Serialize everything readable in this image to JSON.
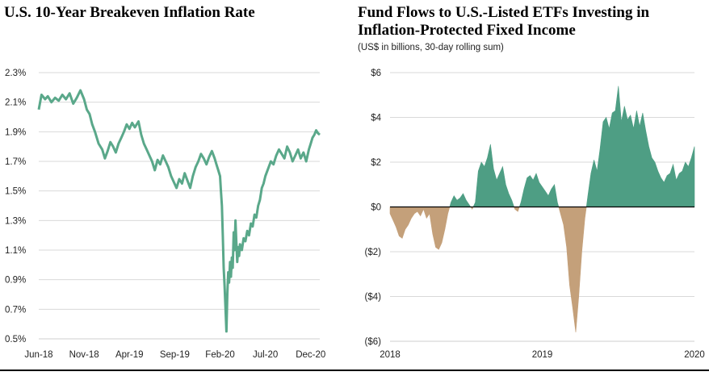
{
  "charts": {
    "left": {
      "title": "U.S. 10-Year Breakeven Inflation Rate"
    },
    "right": {
      "title_line1": "Fund Flows to U.S.-Listed ETFs Investing in",
      "title_line2": "Inflation-Protected Fixed Income",
      "subtitle": "(US$ in billions, 30-day rolling sum)"
    }
  },
  "colors": {
    "line": "#5aa88a",
    "positive": "#4e9e84",
    "negative": "#c4a07a",
    "grid": "#d9d9d9",
    "baseline": "#000000"
  },
  "chart_data": [
    {
      "type": "line",
      "title": "U.S. 10-Year Breakeven Inflation Rate",
      "xlabel": "",
      "ylabel": "",
      "grid": true,
      "ylim": [
        0.5,
        2.3
      ],
      "yticks": [
        "0.5%",
        "0.7%",
        "0.9%",
        "1.1%",
        "1.3%",
        "1.5%",
        "1.7%",
        "1.9%",
        "2.1%",
        "2.3%"
      ],
      "ytick_values": [
        0.5,
        0.7,
        0.9,
        1.1,
        1.3,
        1.5,
        1.7,
        1.9,
        2.1,
        2.3
      ],
      "xlim": [
        0,
        31
      ],
      "xticks": [
        "Jun-18",
        "Nov-18",
        "Apr-19",
        "Sep-19",
        "Feb-20",
        "Jul-20",
        "Dec-20"
      ],
      "xtick_values": [
        0,
        5,
        10,
        15,
        20,
        25,
        30
      ],
      "series": [
        {
          "name": "10-Year Breakeven",
          "x": [
            0,
            0.3,
            0.7,
            1.0,
            1.4,
            1.8,
            2.2,
            2.6,
            3.0,
            3.4,
            3.8,
            4.2,
            4.6,
            5.0,
            5.3,
            5.6,
            5.9,
            6.2,
            6.6,
            7.0,
            7.3,
            7.6,
            7.9,
            8.2,
            8.5,
            8.8,
            9.1,
            9.4,
            9.7,
            10.0,
            10.3,
            10.6,
            11.0,
            11.3,
            11.6,
            11.9,
            12.2,
            12.5,
            12.8,
            13.1,
            13.4,
            13.7,
            14.0,
            14.3,
            14.6,
            14.9,
            15.2,
            15.5,
            15.8,
            16.1,
            16.4,
            16.7,
            17.0,
            17.3,
            17.6,
            17.9,
            18.2,
            18.5,
            18.8,
            19.1,
            19.4,
            19.6,
            19.8,
            20.0,
            20.1,
            20.2,
            20.3,
            20.4,
            20.5,
            20.6,
            20.7,
            20.8,
            20.9,
            21.0,
            21.1,
            21.2,
            21.3,
            21.4,
            21.5,
            21.6,
            21.7,
            21.8,
            21.9,
            22.0,
            22.1,
            22.2,
            22.4,
            22.6,
            22.8,
            23.0,
            23.2,
            23.4,
            23.6,
            23.8,
            24.0,
            24.2,
            24.4,
            24.6,
            24.8,
            25.0,
            25.3,
            25.6,
            25.9,
            26.2,
            26.5,
            26.8,
            27.1,
            27.4,
            27.7,
            28.0,
            28.3,
            28.6,
            28.9,
            29.2,
            29.5,
            29.8,
            30.0,
            30.2,
            30.4,
            30.6,
            30.8,
            31.0
          ],
          "values": [
            2.05,
            2.15,
            2.12,
            2.14,
            2.1,
            2.13,
            2.11,
            2.15,
            2.12,
            2.16,
            2.09,
            2.13,
            2.18,
            2.12,
            2.05,
            2.02,
            1.95,
            1.9,
            1.82,
            1.78,
            1.72,
            1.77,
            1.83,
            1.8,
            1.76,
            1.82,
            1.86,
            1.9,
            1.95,
            1.92,
            1.96,
            1.93,
            1.97,
            1.88,
            1.82,
            1.78,
            1.74,
            1.7,
            1.64,
            1.71,
            1.68,
            1.74,
            1.7,
            1.66,
            1.6,
            1.56,
            1.52,
            1.58,
            1.55,
            1.62,
            1.57,
            1.52,
            1.6,
            1.66,
            1.7,
            1.75,
            1.72,
            1.68,
            1.73,
            1.77,
            1.72,
            1.68,
            1.64,
            1.6,
            1.5,
            1.4,
            1.2,
            0.98,
            0.86,
            0.7,
            0.55,
            0.8,
            0.95,
            0.88,
            1.02,
            0.92,
            1.05,
            0.98,
            1.22,
            1.1,
            1.3,
            1.15,
            1.02,
            1.12,
            1.06,
            1.14,
            1.1,
            1.18,
            1.16,
            1.23,
            1.2,
            1.28,
            1.26,
            1.34,
            1.32,
            1.4,
            1.44,
            1.52,
            1.55,
            1.6,
            1.65,
            1.7,
            1.68,
            1.74,
            1.78,
            1.75,
            1.72,
            1.8,
            1.76,
            1.7,
            1.74,
            1.78,
            1.72,
            1.76,
            1.7,
            1.78,
            1.82,
            1.86,
            1.88,
            1.91,
            1.89,
            1.88
          ]
        }
      ]
    },
    {
      "type": "area",
      "title": "Fund Flows to U.S.-Listed ETFs Investing in Inflation-Protected Fixed Income",
      "subtitle": "(US$ in billions, 30-day rolling sum)",
      "xlabel": "",
      "ylabel": "",
      "grid": true,
      "ylim": [
        -6,
        6
      ],
      "yticks": [
        "$6",
        "$4",
        "$2",
        "$0",
        "($2)",
        "($4)",
        "($6)"
      ],
      "ytick_values": [
        6,
        4,
        2,
        0,
        -2,
        -4,
        -6
      ],
      "xlim": [
        2018,
        2020
      ],
      "xticks": [
        "2018",
        "2019",
        "2020"
      ],
      "xtick_values": [
        2018,
        2019,
        2020
      ],
      "series": [
        {
          "name": "30-day rolling sum",
          "x": [
            2018.0,
            2018.02,
            2018.04,
            2018.06,
            2018.08,
            2018.1,
            2018.12,
            2018.14,
            2018.16,
            2018.18,
            2018.2,
            2018.22,
            2018.24,
            2018.26,
            2018.28,
            2018.3,
            2018.32,
            2018.34,
            2018.36,
            2018.38,
            2018.4,
            2018.42,
            2018.44,
            2018.46,
            2018.48,
            2018.5,
            2018.52,
            2018.54,
            2018.56,
            2018.58,
            2018.6,
            2018.62,
            2018.64,
            2018.66,
            2018.68,
            2018.7,
            2018.72,
            2018.74,
            2018.76,
            2018.78,
            2018.8,
            2018.82,
            2018.84,
            2018.86,
            2018.88,
            2018.9,
            2018.92,
            2018.94,
            2018.96,
            2018.98,
            2019.0,
            2019.02,
            2019.04,
            2019.06,
            2019.08,
            2019.1,
            2019.12,
            2019.14,
            2019.16,
            2019.18,
            2019.2,
            2019.22,
            2019.24,
            2019.26,
            2019.28,
            2019.3,
            2019.32,
            2019.34,
            2019.36,
            2019.38,
            2019.4,
            2019.42,
            2019.44,
            2019.46,
            2019.48,
            2019.5,
            2019.52,
            2019.54,
            2019.56,
            2019.58,
            2019.6,
            2019.62,
            2019.64,
            2019.66,
            2019.68,
            2019.7,
            2019.72,
            2019.74,
            2019.76,
            2019.78,
            2019.8,
            2019.82,
            2019.84,
            2019.86,
            2019.88,
            2019.9,
            2019.92,
            2019.94,
            2019.96,
            2019.98,
            2020.0
          ],
          "values": [
            -0.3,
            -0.6,
            -0.9,
            -1.3,
            -1.4,
            -1.0,
            -0.8,
            -0.5,
            -0.3,
            -0.2,
            -0.4,
            -0.1,
            -0.5,
            -0.3,
            -1.2,
            -1.8,
            -1.9,
            -1.6,
            -1.0,
            -0.3,
            0.2,
            0.5,
            0.3,
            0.4,
            0.6,
            0.3,
            0.1,
            -0.1,
            0.2,
            1.6,
            2.0,
            1.8,
            2.2,
            2.8,
            1.7,
            1.2,
            1.5,
            1.8,
            1.0,
            0.6,
            0.3,
            -0.1,
            -0.2,
            0.2,
            0.8,
            1.3,
            1.4,
            1.2,
            1.5,
            1.1,
            0.9,
            0.7,
            0.5,
            0.8,
            1.0,
            0.2,
            -0.3,
            -0.8,
            -1.8,
            -3.5,
            -4.5,
            -5.6,
            -4.0,
            -2.0,
            -0.5,
            0.5,
            1.5,
            2.1,
            1.6,
            2.6,
            3.8,
            4.0,
            3.5,
            4.2,
            4.3,
            5.4,
            3.8,
            4.5,
            3.9,
            4.1,
            3.5,
            4.3,
            3.6,
            4.2,
            3.4,
            2.7,
            2.2,
            2.0,
            1.6,
            1.3,
            1.1,
            1.4,
            1.5,
            1.9,
            1.2,
            1.5,
            1.6,
            2.0,
            1.8,
            2.2,
            2.7
          ]
        }
      ]
    }
  ]
}
